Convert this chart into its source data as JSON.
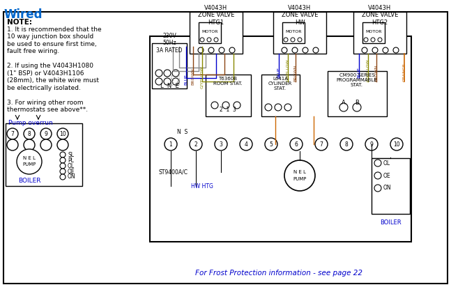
{
  "title": "Wired",
  "bg_color": "#ffffff",
  "border_color": "#000000",
  "note_text": [
    "NOTE:",
    "1. It is recommended that the",
    "10 way junction box should",
    "be used to ensure first time,",
    "fault free wiring.",
    "",
    "2. If using the V4043H1080",
    "(1\" BSP) or V4043H1106",
    "(28mm), the white wire must",
    "be electrically isolated.",
    "",
    "3. For wiring other room",
    "thermostats see above**."
  ],
  "pump_overrun_label": "Pump overrun",
  "zone_valve_labels": [
    "V4043H\nZONE VALVE\nHTG1",
    "V4043H\nZONE VALVE\nHW",
    "V4043H\nZONE VALVE\nHTG2"
  ],
  "bottom_text": "For Frost Protection information - see page 22",
  "voltage_text": "230V\n50Hz\n3A RATED",
  "lne_text": "L  N  E",
  "st9400_text": "ST9400A/C",
  "hw_htg_text": "HW HTG",
  "boiler_text": "BOILER",
  "boiler_text2": "BOILER",
  "pump_text": "PUMP",
  "t6360b_text": "T6360B\nROOM STAT.",
  "l641a_text": "L641A\nCYLINDER\nSTAT.",
  "cm900_text": "CM900 SERIES\nPROGRAMMABLE\nSTAT.",
  "motor_color": "#000000",
  "blue_color": "#0000cc",
  "orange_color": "#cc6600",
  "gray_color": "#888888",
  "brown_color": "#8B4513",
  "gyellow_color": "#888800",
  "text_color_blue": "#0066cc",
  "wire_colors": {
    "BLUE": "#0000cc",
    "ORANGE": "#cc6600",
    "GREY": "#888888",
    "BROWN": "#8B4513",
    "G/YELLOW": "#888800"
  }
}
